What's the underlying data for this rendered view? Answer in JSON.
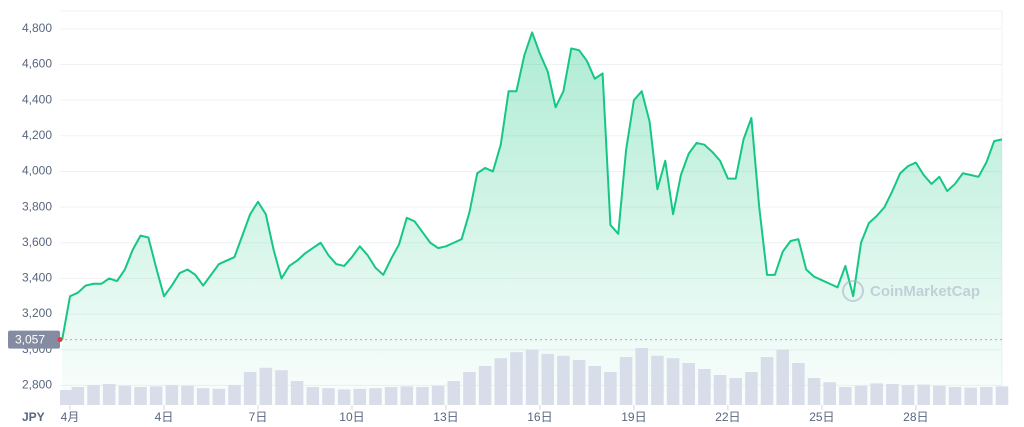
{
  "chart_data": {
    "type": "line",
    "currency_label": "JPY",
    "watermark": "CoinMarketCap",
    "x": [
      0.75,
      1,
      1.25,
      1.5,
      1.75,
      2,
      2.25,
      2.5,
      2.75,
      3,
      3.25,
      3.5,
      3.75,
      4,
      4.25,
      4.5,
      4.75,
      5,
      5.25,
      5.5,
      5.75,
      6,
      6.25,
      6.5,
      6.75,
      7,
      7.25,
      7.5,
      7.75,
      8,
      8.25,
      8.5,
      8.75,
      9,
      9.25,
      9.5,
      9.75,
      10,
      10.25,
      10.5,
      10.75,
      11,
      11.25,
      11.5,
      11.75,
      12,
      12.25,
      12.5,
      12.75,
      13,
      13.25,
      13.5,
      13.75,
      14,
      14.25,
      14.5,
      14.75,
      15,
      15.25,
      15.5,
      15.75,
      16,
      16.25,
      16.5,
      16.75,
      17,
      17.25,
      17.5,
      17.75,
      18,
      18.25,
      18.5,
      18.75,
      19,
      19.25,
      19.5,
      19.75,
      20,
      20.25,
      20.5,
      20.75,
      21,
      21.25,
      21.5,
      21.75,
      22,
      22.25,
      22.5,
      22.75,
      23,
      23.25,
      23.5,
      23.75,
      24,
      24.25,
      24.5,
      24.75,
      25,
      25.25,
      25.5,
      25.75,
      26,
      26.25,
      26.5,
      26.75,
      27,
      27.25,
      27.5,
      27.75,
      28,
      28.25,
      28.5,
      28.75,
      29,
      29.25,
      29.5,
      29.75,
      30,
      30.25,
      30.5,
      30.75
    ],
    "series": [
      {
        "color": "#16c784",
        "values": [
          3057,
          3300,
          3320,
          3360,
          3370,
          3370,
          3400,
          3385,
          3450,
          3560,
          3640,
          3630,
          3460,
          3300,
          3360,
          3430,
          3450,
          3420,
          3360,
          3420,
          3480,
          3500,
          3520,
          3640,
          3760,
          3830,
          3760,
          3560,
          3400,
          3470,
          3500,
          3540,
          3570,
          3600,
          3530,
          3480,
          3470,
          3520,
          3580,
          3530,
          3460,
          3420,
          3510,
          3590,
          3740,
          3720,
          3660,
          3600,
          3570,
          3580,
          3600,
          3620,
          3770,
          3990,
          4020,
          4000,
          4150,
          4450,
          4450,
          4650,
          4780,
          4660,
          4560,
          4360,
          4450,
          4690,
          4680,
          4620,
          4520,
          4550,
          3700,
          3650,
          4120,
          4400,
          4450,
          4280,
          3900,
          4060,
          3760,
          3980,
          4100,
          4160,
          4150,
          4110,
          4060,
          3960,
          3960,
          4180,
          4300,
          3800,
          3420,
          3420,
          3550,
          3610,
          3620,
          3450,
          3410,
          3390,
          3370,
          3350,
          3470,
          3300,
          3600,
          3710,
          3750,
          3800,
          3890,
          3990,
          4030,
          4050,
          3980,
          3930,
          3970,
          3890,
          3930,
          3990,
          3980,
          3970,
          4050,
          4170,
          4180
        ]
      }
    ],
    "xlim": [
      0.68,
      30.75
    ],
    "ylim": [
      2690,
      4900
    ],
    "xticks": [
      {
        "value": 1,
        "label": "4月"
      },
      {
        "value": 4,
        "label": "4日"
      },
      {
        "value": 7,
        "label": "7日"
      },
      {
        "value": 10,
        "label": "10日"
      },
      {
        "value": 13,
        "label": "13日"
      },
      {
        "value": 16,
        "label": "16日"
      },
      {
        "value": 19,
        "label": "19日"
      },
      {
        "value": 22,
        "label": "22日"
      },
      {
        "value": 25,
        "label": "25日"
      },
      {
        "value": 28,
        "label": "28日"
      }
    ],
    "yticks": [
      {
        "value": 2800,
        "label": "2,800"
      },
      {
        "value": 3000,
        "label": "3,000"
      },
      {
        "value": 3200,
        "label": "3,200"
      },
      {
        "value": 3400,
        "label": "3,400"
      },
      {
        "value": 3600,
        "label": "3,600"
      },
      {
        "value": 3800,
        "label": "3,800"
      },
      {
        "value": 4000,
        "label": "4,000"
      },
      {
        "value": 4200,
        "label": "4,200"
      },
      {
        "value": 4400,
        "label": "4,400"
      },
      {
        "value": 4600,
        "label": "4,600"
      },
      {
        "value": 4800,
        "label": "4,800"
      }
    ],
    "grid": true,
    "current_price": {
      "value": 3057,
      "label": "3,057"
    },
    "volume": {
      "color": "#d5d9e8",
      "ylim": [
        0,
        100
      ],
      "x": [
        0.75,
        1.25,
        1.75,
        2.25,
        2.75,
        3.25,
        3.75,
        4.25,
        4.75,
        5.25,
        5.75,
        6.25,
        6.75,
        7.25,
        7.75,
        8.25,
        8.75,
        9.25,
        9.75,
        10.25,
        10.75,
        11.25,
        11.75,
        12.25,
        12.75,
        13.25,
        13.75,
        14.25,
        14.75,
        15.25,
        15.75,
        16.25,
        16.75,
        17.25,
        17.75,
        18.25,
        18.75,
        19.25,
        19.75,
        20.25,
        20.75,
        21.25,
        21.75,
        22.25,
        22.75,
        23.25,
        23.75,
        24.25,
        24.75,
        25.25,
        25.75,
        26.25,
        26.75,
        27.25,
        27.75,
        28.25,
        28.75,
        29.25,
        29.75,
        30.25,
        30.75
      ],
      "values": [
        25,
        30,
        33,
        35,
        32,
        30,
        31,
        33,
        32,
        28,
        27,
        33,
        55,
        62,
        58,
        40,
        30,
        28,
        26,
        27,
        28,
        30,
        31,
        30,
        32,
        40,
        55,
        65,
        78,
        88,
        92,
        85,
        82,
        75,
        65,
        55,
        80,
        95,
        82,
        78,
        70,
        60,
        50,
        45,
        55,
        80,
        92,
        70,
        45,
        38,
        30,
        32,
        36,
        35,
        33,
        34,
        32,
        30,
        29,
        30,
        31
      ]
    }
  }
}
